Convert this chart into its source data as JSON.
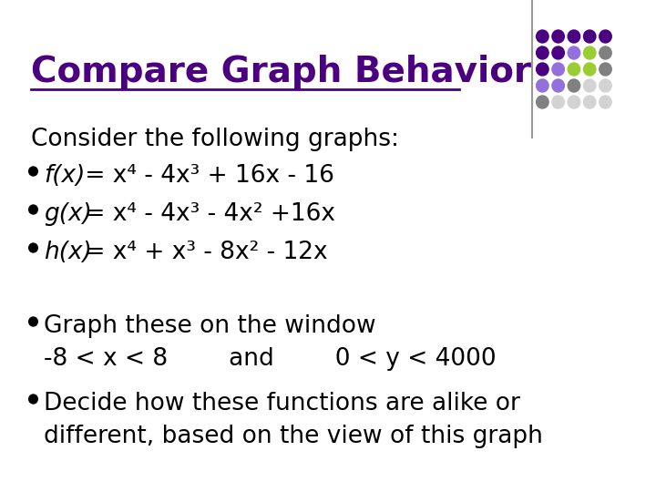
{
  "title": "Compare Graph Behavior",
  "title_color": "#4B0082",
  "title_underline": true,
  "title_fontsize": 28,
  "title_bold": true,
  "background_color": "#ffffff",
  "body_fontsize": 19,
  "body_color": "#000000",
  "consider_text": "Consider the following graphs:",
  "bullet_lines": [
    {
      "italic_part": "f(x)",
      "rest": " = x⁴ - 4x³ + 16x - 16"
    },
    {
      "italic_part": "g(x)",
      "rest": " = x⁴ - 4x³ - 4x² +16x"
    },
    {
      "italic_part": "h(x)",
      "rest": " = x⁴ + x³ - 8x² - 12x"
    }
  ],
  "extra_bullets": [
    "Graph these on the window\n    -8 < Χ < 8        and        0 < Ψ < 4000",
    "Decide how these functions are alike or\n    different, based on the view of this graph"
  ],
  "dot_grid": {
    "colors": [
      "#4B0082",
      "#4B0082",
      "#4B0082",
      "#4B0082",
      "#4B0082",
      "#4B0082",
      "#9370DB",
      "#9370DB",
      "#9370DB",
      "#808080",
      "#4B0082",
      "#9370DB",
      "#808080",
      "#808080",
      "#D3D3D3",
      "#808080",
      "#9370DB",
      "#808080",
      "#D3D3D3",
      "#D3D3D3",
      "#9ACD32",
      "#9ACD32",
      "#808080",
      "#D3D3D3",
      "#D3D3D3"
    ],
    "rows": 5,
    "cols": 5
  }
}
